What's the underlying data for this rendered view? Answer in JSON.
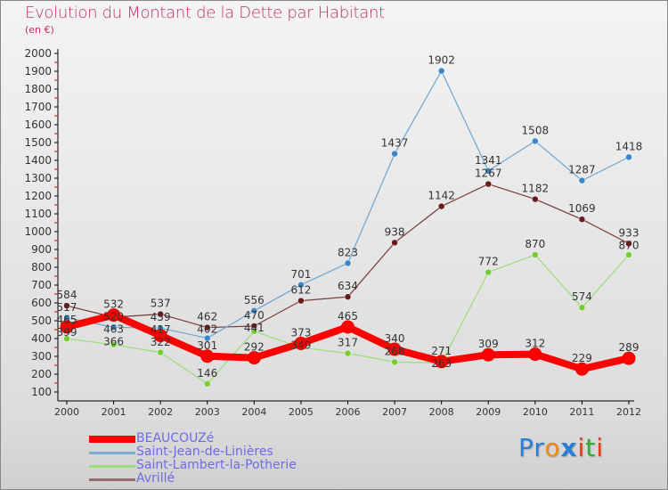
{
  "title": "Evolution du Montant de la Dette par Habitant",
  "unit": "(en €)",
  "logo": "Proxiti",
  "chart_data": {
    "type": "line",
    "title": "Evolution du Montant de la Dette par Habitant",
    "ylabel": "(en €)",
    "x": [
      2000,
      2001,
      2002,
      2003,
      2004,
      2005,
      2006,
      2007,
      2008,
      2009,
      2010,
      2011,
      2012
    ],
    "ylim": [
      100,
      2000
    ],
    "yticks": [
      100,
      200,
      300,
      400,
      500,
      600,
      700,
      800,
      900,
      1000,
      1100,
      1200,
      1300,
      1400,
      1500,
      1600,
      1700,
      1800,
      1900,
      2000
    ],
    "legend": "bottom-left",
    "series": [
      {
        "name": "BEAUCOUZé",
        "color": "#ff0000",
        "width": 8,
        "values": [
          465,
          532,
          417,
          301,
          292,
          373,
          465,
          340,
          271,
          309,
          312,
          229,
          289
        ]
      },
      {
        "name": "Saint-Jean-de-Linières",
        "color": "#6aa6d8",
        "width": 1.2,
        "dot": "#3a86c8",
        "values": [
          517,
          463,
          459,
          402,
          556,
          701,
          823,
          1437,
          1902,
          1341,
          1508,
          1287,
          1418
        ]
      },
      {
        "name": "Saint-Lambert-la-Potherie",
        "color": "#99dd77",
        "width": 1.2,
        "dot": "#77cc33",
        "values": [
          399,
          366,
          322,
          146,
          441,
          349,
          317,
          268,
          263,
          772,
          870,
          574,
          870
        ]
      },
      {
        "name": "Avrillé",
        "color": "#7a3a3a",
        "width": 1.2,
        "dot": "#6a1a1a",
        "values": [
          584,
          520,
          537,
          462,
          470,
          612,
          634,
          938,
          1142,
          1267,
          1182,
          1069,
          933
        ]
      }
    ]
  }
}
